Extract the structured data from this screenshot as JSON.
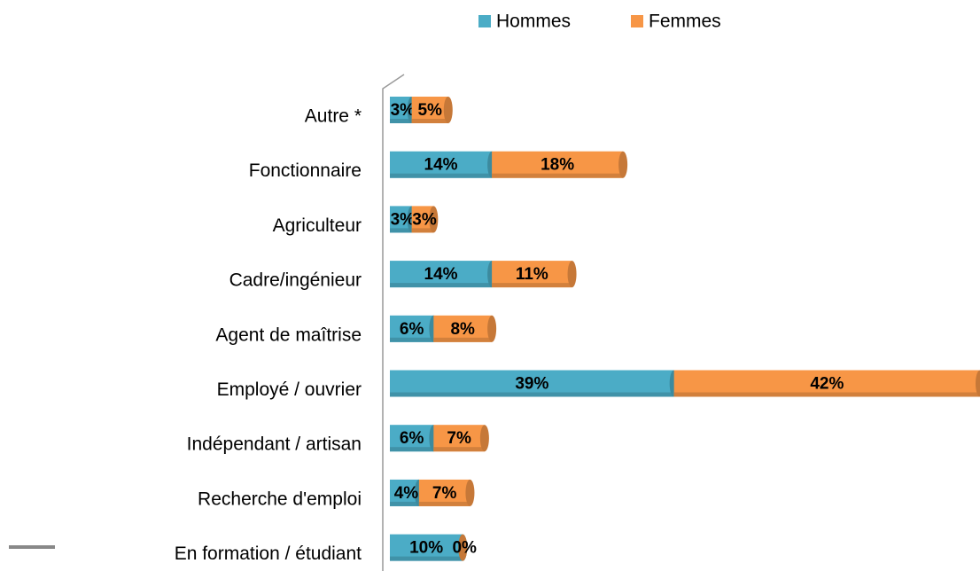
{
  "chart_data": {
    "type": "bar",
    "orientation": "horizontal",
    "stacked": true,
    "categories": [
      "Autre *",
      "Fonctionnaire",
      "Agriculteur",
      "Cadre/ingénieur",
      "Agent de maîtrise",
      "Employé / ouvrier",
      "Indépendant / artisan",
      "Recherche d'emploi",
      "En formation / étudiant"
    ],
    "series": [
      {
        "name": "Hommes",
        "color": "#4bacc6",
        "values": [
          3,
          14,
          3,
          14,
          6,
          39,
          6,
          4,
          10
        ],
        "value_labels": [
          "3%",
          "14%",
          "3%",
          "14%",
          "6%",
          "39%",
          "6%",
          "4%",
          "10%"
        ]
      },
      {
        "name": "Femmes",
        "color": "#f79646",
        "values": [
          5,
          18,
          3,
          11,
          8,
          42,
          7,
          7,
          0
        ],
        "value_labels": [
          "5%",
          "18%",
          "3%",
          "11%",
          "8%",
          "42%",
          "7%",
          "7%",
          "0%"
        ]
      }
    ],
    "legend": "top"
  }
}
